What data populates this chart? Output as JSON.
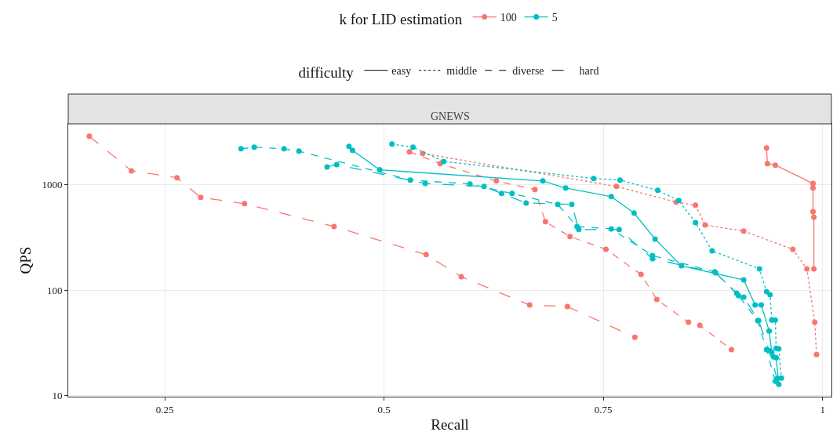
{
  "chart_data": {
    "type": "line",
    "subtitle": "GNEWS",
    "xlabel": "Recall",
    "ylabel": "QPS",
    "legend_title": [
      "k for LID estimation",
      "difficulty"
    ],
    "xlim": [
      0.14,
      1.01
    ],
    "xticks": [
      0.25,
      0.5,
      0.75,
      1
    ],
    "ylim": [
      9.7,
      3800
    ],
    "yticks": [
      10,
      100,
      1000
    ],
    "log": "y",
    "grid": true,
    "legend": "top",
    "marker": "circle",
    "series": [
      {
        "name": "100",
        "color": "#f8766d",
        "line_style": "solid",
        "x": [
          0.936,
          0.937,
          0.946,
          0.989,
          0.989,
          0.989,
          0.99,
          0.99
        ],
        "values": [
          2240,
          1590,
          1540,
          1030,
          934,
          557,
          494,
          159
        ]
      },
      {
        "color": "#f8766d",
        "line_style": "dotted",
        "x": [
          0.544,
          0.765,
          0.833,
          0.855,
          0.866,
          0.91,
          0.966,
          0.982,
          0.991,
          0.993
        ],
        "values": [
          1990,
          966,
          685,
          640,
          416,
          363,
          244,
          159,
          49.5,
          24.4
        ]
      },
      {
        "color": "#f8766d",
        "line_style": "dashed",
        "x": [
          0.529,
          0.564,
          0.628,
          0.672,
          0.684,
          0.712,
          0.753,
          0.793,
          0.811,
          0.847,
          0.86,
          0.896
        ],
        "values": [
          2060,
          1590,
          1090,
          902,
          446,
          322,
          244,
          141,
          81.3,
          49.5,
          46.2,
          27.1
        ]
      },
      {
        "color": "#f8766d",
        "line_style": "longdash",
        "x": [
          0.164,
          0.212,
          0.264,
          0.291,
          0.341,
          0.443,
          0.548,
          0.588,
          0.666,
          0.709,
          0.786
        ],
        "values": [
          2900,
          1360,
          1170,
          760,
          662,
          402,
          217,
          134,
          72.1,
          69.7,
          35.6
        ]
      },
      {
        "name": "5",
        "color": "#00bfc4",
        "line_style": "solid",
        "x": [
          0.46,
          0.464,
          0.495,
          0.681,
          0.707,
          0.759,
          0.785,
          0.809,
          0.839,
          0.91,
          0.923,
          0.93,
          0.939,
          0.942,
          0.944,
          0.947,
          0.95
        ],
        "values": [
          2320,
          2130,
          1390,
          1090,
          934,
          773,
          539,
          305,
          170,
          125,
          72.1,
          72.1,
          40.9,
          25.7,
          23.2,
          22.8,
          12.7
        ]
      },
      {
        "color": "#00bfc4",
        "line_style": "dotted",
        "x": [
          0.509,
          0.533,
          0.568,
          0.739,
          0.769,
          0.812,
          0.836,
          0.855,
          0.874,
          0.928,
          0.936,
          0.94,
          0.942,
          0.946,
          0.947,
          0.95,
          0.953
        ],
        "values": [
          2440,
          2280,
          1670,
          1150,
          1110,
          887,
          709,
          438,
          236,
          159,
          96.6,
          90.2,
          52.0,
          52.0,
          28.0,
          27.6,
          14.6
        ]
      },
      {
        "color": "#00bfc4",
        "line_style": "dashed",
        "x": [
          0.337,
          0.352,
          0.386,
          0.403,
          0.53,
          0.598,
          0.646,
          0.698,
          0.72,
          0.759,
          0.806,
          0.877,
          0.902,
          0.926,
          0.936,
          0.946
        ],
        "values": [
          2200,
          2280,
          2200,
          2090,
          1110,
          1020,
          828,
          651,
          402,
          382,
          213,
          149,
          93.3,
          51.2,
          27.1,
          13.6
        ]
      },
      {
        "color": "#00bfc4",
        "line_style": "longdash",
        "x": [
          0.435,
          0.446,
          0.547,
          0.614,
          0.634,
          0.662,
          0.714,
          0.722,
          0.768,
          0.806,
          0.878,
          0.904,
          0.91,
          0.927,
          0.939,
          0.948
        ],
        "values": [
          1480,
          1560,
          1030,
          966,
          828,
          673,
          651,
          376,
          376,
          199,
          146,
          88.7,
          85.7,
          51.2,
          26.6,
          14.4
        ]
      },
      {
        "name": "easy",
        "color": "#333333",
        "line_style": "solid"
      },
      {
        "name": "middle",
        "color": "#333333",
        "line_style": "dotted"
      },
      {
        "name": "diverse",
        "color": "#333333",
        "line_style": "dashed"
      },
      {
        "name": "hard",
        "color": "#333333",
        "line_style": "longdash"
      }
    ]
  }
}
